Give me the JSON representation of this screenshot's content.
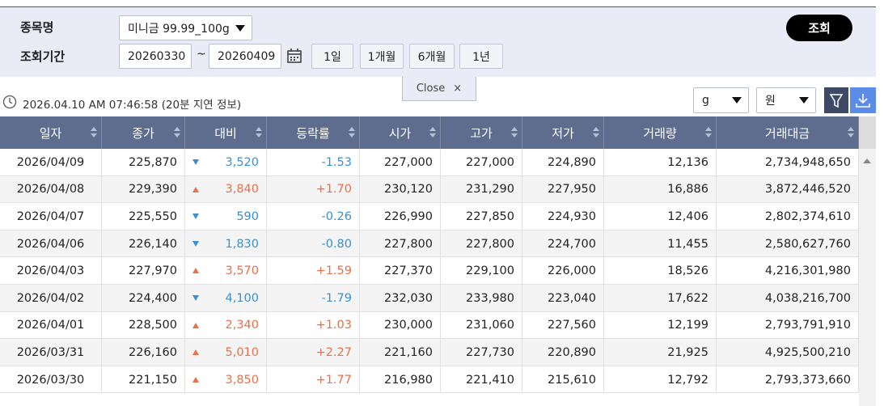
{
  "filter": {
    "item_label": "종목명",
    "item_value": "미니금 99.99_100g",
    "period_label": "조회기간",
    "start_date": "20260330",
    "separator": "~",
    "end_date": "20260409",
    "ranges": [
      "1일",
      "1개월",
      "6개월",
      "1년"
    ],
    "search_button": "조회"
  },
  "close_tab": {
    "label": "Close",
    "icon": "×"
  },
  "status": {
    "timestamp": "2026.04.10 AM 07:46:58",
    "delay_note": "(20분 지연 정보)"
  },
  "unit_select": "g",
  "currency_select": "원",
  "table": {
    "headers": [
      "일자",
      "종가",
      "대비",
      "등락률",
      "시가",
      "고가",
      "저가",
      "거래량",
      "거래대금"
    ],
    "rows": [
      [
        "2026/04/09",
        "225,870",
        "3,520",
        "-1.53",
        "227,000",
        "227,000",
        "224,890",
        "12,136",
        "2,734,948,650"
      ],
      [
        "2026/04/08",
        "229,390",
        "3,840",
        "+1.70",
        "230,120",
        "231,290",
        "227,950",
        "16,886",
        "3,872,446,520"
      ],
      [
        "2026/04/07",
        "225,550",
        "590",
        "-0.26",
        "226,990",
        "227,850",
        "224,930",
        "12,406",
        "2,802,374,610"
      ],
      [
        "2026/04/06",
        "226,140",
        "1,830",
        "-0.80",
        "227,800",
        "227,800",
        "224,700",
        "11,455",
        "2,580,627,760"
      ],
      [
        "2026/04/03",
        "227,970",
        "3,570",
        "+1.59",
        "227,370",
        "229,100",
        "226,000",
        "18,526",
        "4,216,301,980"
      ],
      [
        "2026/04/02",
        "224,400",
        "4,100",
        "-1.79",
        "232,030",
        "233,980",
        "223,040",
        "17,622",
        "4,038,216,700"
      ],
      [
        "2026/04/01",
        "228,500",
        "2,340",
        "+1.03",
        "230,000",
        "231,060",
        "227,560",
        "12,199",
        "2,793,791,910"
      ],
      [
        "2026/03/31",
        "226,160",
        "5,010",
        "+2.27",
        "221,160",
        "227,730",
        "220,890",
        "21,925",
        "4,925,500,210"
      ],
      [
        "2026/03/30",
        "221,150",
        "3,850",
        "+1.77",
        "216,980",
        "221,410",
        "215,610",
        "12,792",
        "2,793,373,660"
      ]
    ]
  }
}
